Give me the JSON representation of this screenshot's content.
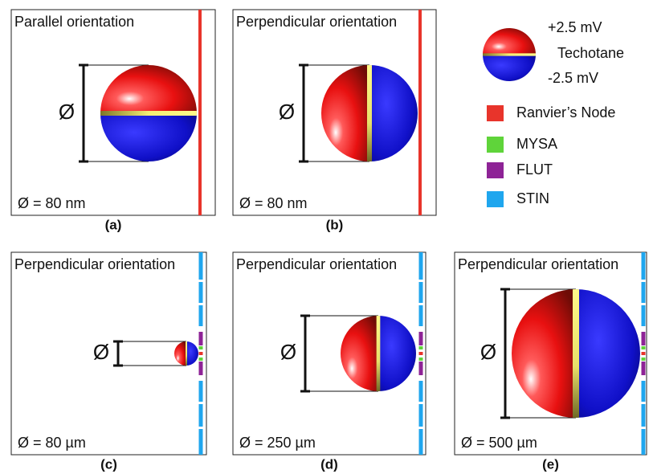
{
  "legend": {
    "plus": "+2.5 mV",
    "middle": "Techotane",
    "minus": "-2.5 mV",
    "items": [
      {
        "label": "Ranvier’s Node",
        "color": "#e8342b"
      },
      {
        "label": "MYSA",
        "color": "#5fd43a"
      },
      {
        "label": "FLUT",
        "color": "#8e2396"
      },
      {
        "label": "STIN",
        "color": "#1fa6ee"
      }
    ]
  },
  "panels": [
    {
      "title": "Parallel orientation",
      "symbol": "Ø",
      "diameter_label": "Ø = 80 nm",
      "caption": "(a)"
    },
    {
      "title": "Perpendicular orientation",
      "symbol": "Ø",
      "diameter_label": "Ø = 80 nm",
      "caption": "(b)"
    },
    {
      "title": "Perpendicular orientation",
      "symbol": "Ø",
      "diameter_label": "Ø = 80 µm",
      "caption": "(c)"
    },
    {
      "title": "Perpendicular orientation",
      "symbol": "Ø",
      "diameter_label": "Ø = 250 µm",
      "caption": "(d)"
    },
    {
      "title": "Perpendicular orientation",
      "symbol": "Ø",
      "diameter_label": "Ø = 500 µm",
      "caption": "(e)"
    }
  ]
}
